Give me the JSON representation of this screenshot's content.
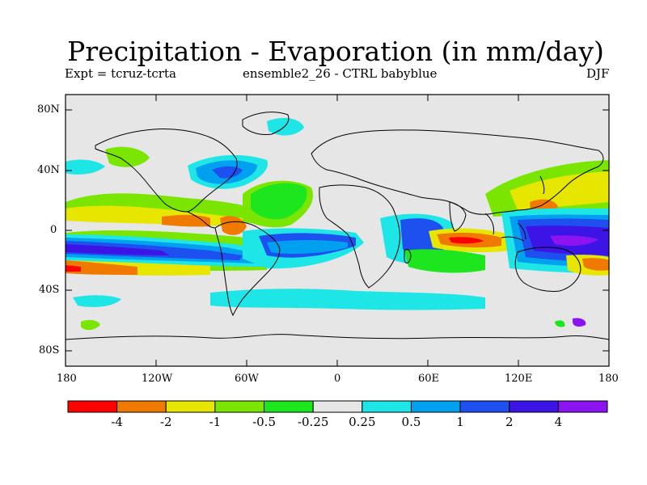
{
  "title": "Precipitation - Evaporation (in mm/day)",
  "subtitle_left": "Expt = tcruz-tcrta",
  "subtitle_center": "ensemble2_26 - CTRL babyblue",
  "subtitle_right": "DJF",
  "y_ticks": [
    "80N",
    "40N",
    "0",
    "40S",
    "80S"
  ],
  "x_ticks": [
    "180",
    "120W",
    "60W",
    "0",
    "60E",
    "120E",
    "180"
  ],
  "colorbar": {
    "labels": [
      "-4",
      "-2",
      "-1",
      "-0.5",
      "-0.25",
      "0.25",
      "0.5",
      "1",
      "2",
      "4"
    ],
    "colors": [
      "#ff0000",
      "#f07a00",
      "#e6e600",
      "#7ae600",
      "#1ee61e",
      "#e6e6e6",
      "#1ee6e6",
      "#00a0f0",
      "#1e50f0",
      "#3c14e6",
      "#8c14f0"
    ]
  },
  "colors": {
    "ocean_bg": "#e6e6e6",
    "coast": "#000000"
  }
}
